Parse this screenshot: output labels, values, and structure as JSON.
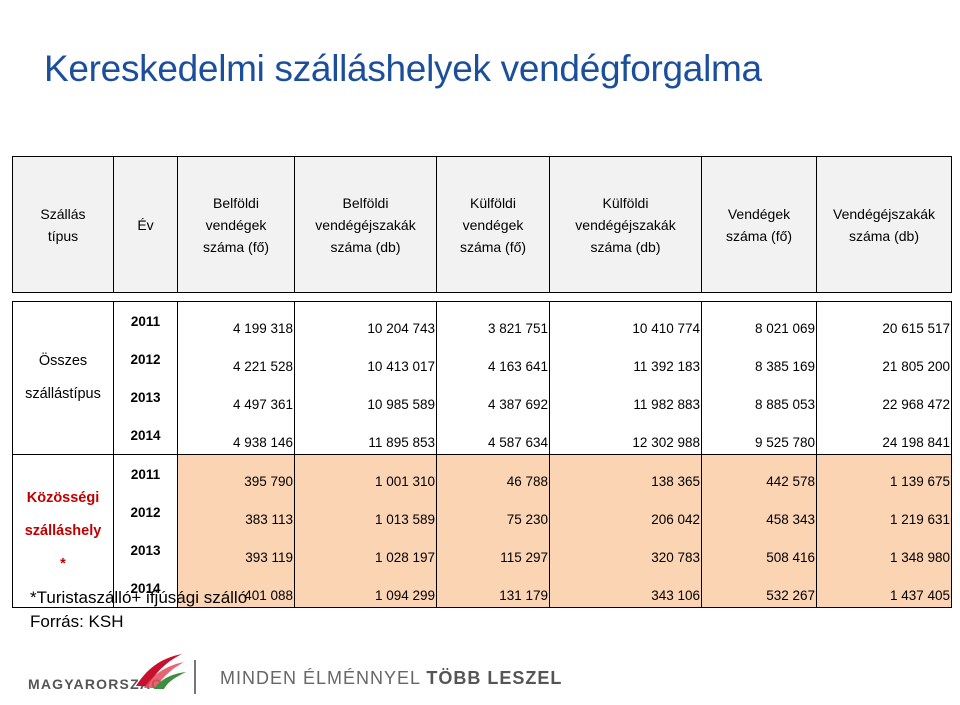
{
  "title": "Kereskedelmi szálláshelyek vendégforgalma",
  "table": {
    "headers": [
      "Szállás\ntípus",
      "Év",
      "Belföldi\nvendégek\nszáma (fő)",
      "Belföldi\nvendégéjszakák\nszáma (db)",
      "Külföldi\nvendégek\nszáma (fő)",
      "Külföldi\nvendégéjszakák\nszáma (db)",
      "Vendégek\nszáma (fő)",
      "Vendégéjszakák\nszáma (db)"
    ],
    "groups": [
      {
        "label": "Összes\nszállástípus",
        "rows": [
          {
            "year": "2011",
            "values": [
              "4 199 318",
              "10 204 743",
              "3 821 751",
              "10 410 774",
              "8 021 069",
              "20 615 517"
            ]
          },
          {
            "year": "2012",
            "values": [
              "4 221 528",
              "10 413 017",
              "4 163 641",
              "11 392 183",
              "8 385 169",
              "21 805 200"
            ]
          },
          {
            "year": "2013",
            "values": [
              "4 497 361",
              "10 985 589",
              "4 387 692",
              "11 982 883",
              "8 885 053",
              "22 968 472"
            ]
          },
          {
            "year": "2014",
            "values": [
              "4 938 146",
              "11 895 853",
              "4 587 634",
              "12 302 988",
              "9 525 780",
              "24 198 841"
            ]
          }
        ]
      },
      {
        "label": "Közösségi\nszálláshely\n*",
        "rows": [
          {
            "year": "2011",
            "values": [
              "395 790",
              "1 001 310",
              "46 788",
              "138 365",
              "442 578",
              "1 139 675"
            ]
          },
          {
            "year": "2012",
            "values": [
              "383 113",
              "1 013 589",
              "75 230",
              "206 042",
              "458 343",
              "1 219 631"
            ]
          },
          {
            "year": "2013",
            "values": [
              "393 119",
              "1 028 197",
              "115 297",
              "320 783",
              "508 416",
              "1 348 980"
            ]
          },
          {
            "year": "2014",
            "values": [
              "401 088",
              "1 094 299",
              "131 179",
              "343 106",
              "532 267",
              "1 437 405"
            ]
          }
        ]
      }
    ]
  },
  "footnote": {
    "line1": "*Turistaszálló+ ifjúsági szálló",
    "line2": "Forrás: KSH"
  },
  "footer": {
    "logo_text": "MAGYARORSZÁG",
    "logo_icon": "hungary-ribbon-logo",
    "slogan_light": "MINDEN ÉLMÉNNYEL",
    "slogan_bold": "TÖBB LESZEL"
  },
  "colors": {
    "title": "#1b4f9c",
    "highlight_fill": "#fbd4b4",
    "highlight_label": "#c00000",
    "header_fill": "#f2f2f2"
  }
}
